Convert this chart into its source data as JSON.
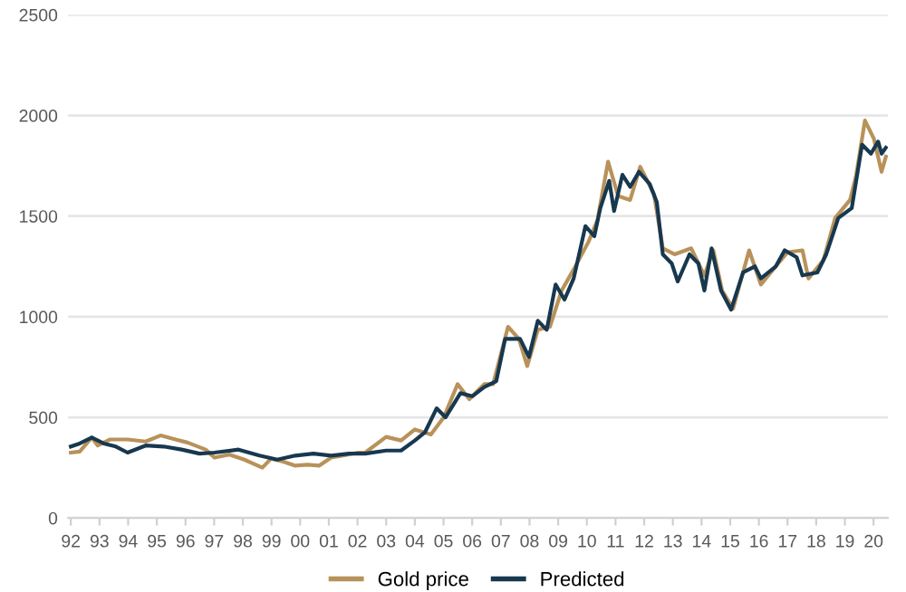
{
  "chart_data": {
    "type": "line",
    "xlim": [
      1991.9,
      2020.5
    ],
    "ylim": [
      0,
      2500
    ],
    "xticks": [
      {
        "value": 1992,
        "label": "92"
      },
      {
        "value": 1993,
        "label": "93"
      },
      {
        "value": 1994,
        "label": "94"
      },
      {
        "value": 1995,
        "label": "95"
      },
      {
        "value": 1996,
        "label": "96"
      },
      {
        "value": 1997,
        "label": "97"
      },
      {
        "value": 1998,
        "label": "98"
      },
      {
        "value": 1999,
        "label": "99"
      },
      {
        "value": 2000,
        "label": "00"
      },
      {
        "value": 2001,
        "label": "01"
      },
      {
        "value": 2002,
        "label": "02"
      },
      {
        "value": 2003,
        "label": "03"
      },
      {
        "value": 2004,
        "label": "04"
      },
      {
        "value": 2005,
        "label": "05"
      },
      {
        "value": 2006,
        "label": "06"
      },
      {
        "value": 2007,
        "label": "07"
      },
      {
        "value": 2008,
        "label": "08"
      },
      {
        "value": 2009,
        "label": "09"
      },
      {
        "value": 2010,
        "label": "10"
      },
      {
        "value": 2011,
        "label": "11"
      },
      {
        "value": 2012,
        "label": "12"
      },
      {
        "value": 2013,
        "label": "13"
      },
      {
        "value": 2014,
        "label": "14"
      },
      {
        "value": 2015,
        "label": "15"
      },
      {
        "value": 2016,
        "label": "16"
      },
      {
        "value": 2017,
        "label": "17"
      },
      {
        "value": 2018,
        "label": "18"
      },
      {
        "value": 2019,
        "label": "19"
      },
      {
        "value": 2020,
        "label": "20"
      }
    ],
    "yticks": [
      0,
      500,
      1000,
      1500,
      2000,
      2500
    ],
    "grid": "y",
    "legend": "bottom",
    "marker": "none",
    "line_style": "solid",
    "series": [
      {
        "name": "Gold price",
        "color": "#b8925a",
        "x": [
          1992.0,
          1992.31,
          1992.73,
          1992.94,
          1993.36,
          1993.98,
          1994.61,
          1995.13,
          1995.65,
          1996.07,
          1996.7,
          1997.01,
          1997.53,
          1998.05,
          1998.68,
          1998.99,
          1999.41,
          1999.83,
          2000.25,
          2000.66,
          2001.08,
          2001.5,
          2002.02,
          2002.27,
          2003.0,
          2003.52,
          2004.0,
          2004.56,
          2005.01,
          2005.49,
          2005.9,
          2006.42,
          2006.73,
          2007.25,
          2007.63,
          2007.92,
          2008.29,
          2008.71,
          2009.12,
          2009.54,
          2010.05,
          2010.37,
          2010.74,
          2011.09,
          2011.51,
          2011.86,
          2012.34,
          2012.65,
          2013.06,
          2013.64,
          2014.1,
          2014.41,
          2014.72,
          2015.1,
          2015.66,
          2016.07,
          2016.59,
          2017.0,
          2017.52,
          2017.73,
          2018.25,
          2018.66,
          2019.18,
          2019.39,
          2019.7,
          2020.01,
          2020.28,
          2020.43
        ],
        "values": [
          325,
          330,
          400,
          360,
          390,
          390,
          380,
          410,
          390,
          375,
          340,
          300,
          315,
          290,
          250,
          295,
          280,
          260,
          265,
          260,
          300,
          310,
          325,
          325,
          403,
          385,
          440,
          415,
          500,
          665,
          590,
          665,
          665,
          950,
          890,
          755,
          935,
          950,
          1130,
          1235,
          1370,
          1480,
          1770,
          1600,
          1580,
          1745,
          1610,
          1340,
          1310,
          1340,
          1205,
          1330,
          1130,
          1040,
          1330,
          1160,
          1250,
          1320,
          1330,
          1190,
          1280,
          1490,
          1580,
          1700,
          1975,
          1885,
          1720,
          1795
        ]
      },
      {
        "name": "Predicted",
        "color": "#17384f",
        "x": [
          1992.0,
          1992.31,
          1992.73,
          1993.15,
          1993.57,
          1993.98,
          1994.61,
          1995.24,
          1995.86,
          1996.49,
          1997.01,
          1997.85,
          1998.58,
          1999.2,
          1999.83,
          2000.46,
          2001.08,
          2001.71,
          2002.27,
          2003.0,
          2003.52,
          2004.0,
          2004.35,
          2004.76,
          2005.07,
          2005.59,
          2006.01,
          2006.42,
          2006.84,
          2007.15,
          2007.67,
          2007.98,
          2008.29,
          2008.6,
          2008.91,
          2009.22,
          2009.54,
          2009.95,
          2010.26,
          2010.47,
          2010.78,
          2010.95,
          2011.24,
          2011.51,
          2011.82,
          2012.19,
          2012.44,
          2012.65,
          2012.96,
          2013.17,
          2013.58,
          2013.89,
          2014.1,
          2014.35,
          2014.68,
          2015.03,
          2015.45,
          2015.86,
          2016.07,
          2016.59,
          2016.9,
          2017.32,
          2017.52,
          2018.04,
          2018.35,
          2018.77,
          2019.24,
          2019.6,
          2019.91,
          2020.16,
          2020.28,
          2020.43
        ],
        "values": [
          355,
          370,
          400,
          370,
          355,
          325,
          360,
          355,
          340,
          320,
          325,
          340,
          310,
          290,
          310,
          320,
          310,
          320,
          320,
          335,
          335,
          385,
          425,
          545,
          500,
          620,
          605,
          650,
          680,
          890,
          890,
          800,
          980,
          935,
          1160,
          1085,
          1190,
          1450,
          1400,
          1540,
          1675,
          1525,
          1705,
          1645,
          1720,
          1660,
          1570,
          1310,
          1265,
          1175,
          1310,
          1265,
          1130,
          1340,
          1130,
          1035,
          1220,
          1250,
          1190,
          1250,
          1330,
          1295,
          1205,
          1220,
          1310,
          1490,
          1540,
          1855,
          1810,
          1870,
          1810,
          1840
        ]
      }
    ]
  }
}
